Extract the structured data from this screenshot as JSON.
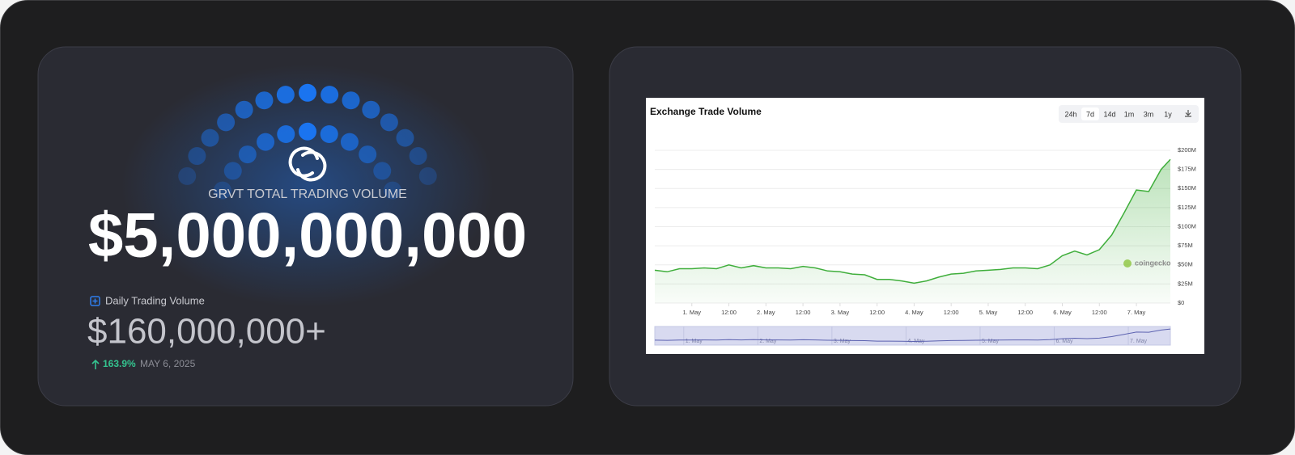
{
  "card": {
    "headline": "GRVT TOTAL TRADING VOLUME",
    "total": "$5,000,000,000",
    "daily_label": "Daily Trading Volume",
    "daily_value": "$160,000,000+",
    "change": "163.9%",
    "date": "MAY 6, 2025"
  },
  "chart_controls": [
    "24h",
    "7d",
    "14d",
    "1m",
    "3m",
    "1y"
  ],
  "chart_data": {
    "type": "line",
    "title": "Exchange Trade Volume",
    "watermark": "coingecko",
    "color": "#3fae3b",
    "x": [
      0,
      4,
      8,
      12,
      16,
      20,
      24,
      28,
      32,
      36,
      40,
      44,
      48,
      52,
      56,
      60,
      64,
      68,
      72,
      76,
      80,
      84,
      88,
      92,
      96,
      100,
      104,
      108,
      112,
      116,
      120,
      124,
      128,
      132,
      136,
      140,
      144,
      148,
      152,
      156,
      160,
      164,
      167
    ],
    "values": [
      43,
      41,
      45,
      45,
      46,
      45,
      50,
      46,
      49,
      46,
      46,
      45,
      48,
      46,
      42,
      41,
      38,
      37,
      31,
      31,
      29,
      26,
      29,
      34,
      38,
      39,
      42,
      43,
      44,
      46,
      46,
      45,
      50,
      62,
      68,
      63,
      70,
      89,
      118,
      148,
      146,
      175,
      188
    ],
    "xlim": [
      0,
      167
    ],
    "xticks": [
      {
        "value": 12,
        "label": "1. May"
      },
      {
        "value": 24,
        "label": "12:00"
      },
      {
        "value": 36,
        "label": "2. May"
      },
      {
        "value": 48,
        "label": "12:00"
      },
      {
        "value": 60,
        "label": "3. May"
      },
      {
        "value": 72,
        "label": "12:00"
      },
      {
        "value": 84,
        "label": "4. May"
      },
      {
        "value": 96,
        "label": "12:00"
      },
      {
        "value": 108,
        "label": "5. May"
      },
      {
        "value": 120,
        "label": "12:00"
      },
      {
        "value": 132,
        "label": "6. May"
      },
      {
        "value": 144,
        "label": "12:00"
      },
      {
        "value": 156,
        "label": "7. May"
      }
    ],
    "ylim": [
      0,
      200
    ],
    "yticks": [
      {
        "value": 0,
        "label": "$0"
      },
      {
        "value": 25,
        "label": "$25M"
      },
      {
        "value": 50,
        "label": "$50M"
      },
      {
        "value": 75,
        "label": "$75M"
      },
      {
        "value": 100,
        "label": "$100M"
      },
      {
        "value": 125,
        "label": "$125M"
      },
      {
        "value": 150,
        "label": "$150M"
      },
      {
        "value": 175,
        "label": "$175M"
      },
      {
        "value": 200,
        "label": "$200M"
      }
    ],
    "grid": true
  }
}
